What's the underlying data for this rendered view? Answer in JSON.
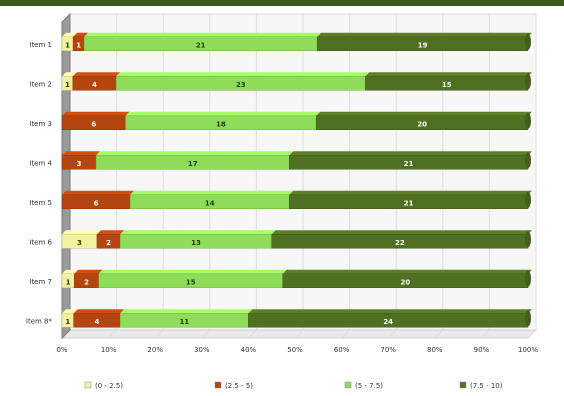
{
  "chart_data": {
    "type": "bar",
    "orientation": "horizontal",
    "stacked": "100%",
    "categories": [
      "Item 1",
      "Item 2",
      "Item 3",
      "Item 4",
      "Item 5",
      "Item 6",
      "Item 7",
      "Item 8*"
    ],
    "series": [
      {
        "name": "(0 - 2.5)",
        "color": "#f3f0a0",
        "values": [
          1,
          1,
          0,
          0,
          0,
          3,
          1,
          1
        ]
      },
      {
        "name": "(2.5 - 5)",
        "color": "#b5450f",
        "values": [
          1,
          4,
          6,
          3,
          6,
          2,
          2,
          4
        ]
      },
      {
        "name": "(5 - 7.5)",
        "color": "#8fdc5a",
        "values": [
          21,
          23,
          18,
          17,
          14,
          13,
          15,
          11
        ]
      },
      {
        "name": "(7.5 - 10)",
        "color": "#4f6f22",
        "values": [
          19,
          15,
          20,
          21,
          21,
          22,
          20,
          24
        ]
      }
    ],
    "x_ticks": [
      "0%",
      "10%",
      "20%",
      "30%",
      "40%",
      "50%",
      "60%",
      "70%",
      "80%",
      "90%",
      "100%"
    ],
    "xlim": [
      0,
      100
    ],
    "grid": true,
    "legend_position": "bottom",
    "title": "",
    "xlabel": "",
    "ylabel": ""
  }
}
